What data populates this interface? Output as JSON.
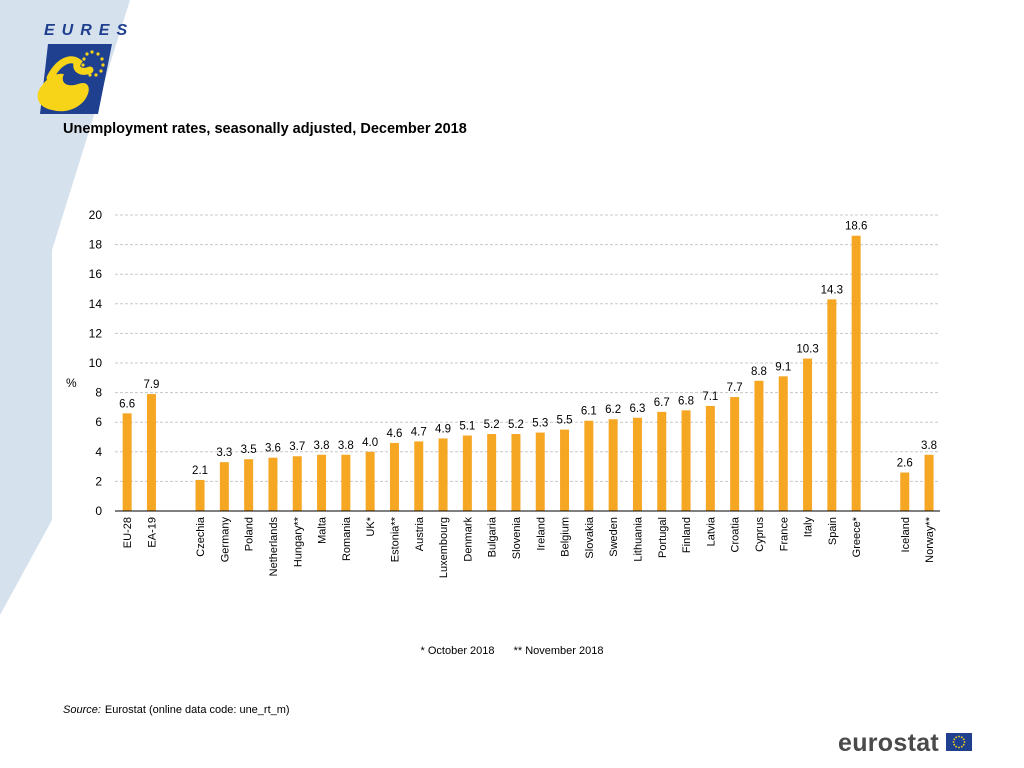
{
  "brand": {
    "logo_text": "EURES",
    "publisher": "eurostat"
  },
  "colors": {
    "bar": "#F5A623",
    "side_panel": "#D6E1EE",
    "logo_blue": "#1F3F8F",
    "logo_yellow": "#F7D417",
    "grid": "#C8C8C8"
  },
  "chart_data": {
    "type": "bar",
    "title": "Unemployment rates, seasonally adjusted, December 2018",
    "ylabel": "%",
    "xlabel": "",
    "ylim": [
      0,
      20
    ],
    "yticks": [
      0,
      2,
      4,
      6,
      8,
      10,
      12,
      14,
      16,
      18,
      20
    ],
    "grid": "horizontal dashed",
    "groups": [
      {
        "categories": [
          "EU-28",
          "EA-19"
        ],
        "values": [
          6.6,
          7.9
        ]
      },
      {
        "categories": [
          "Czechia",
          "Germany",
          "Poland",
          "Netherlands",
          "Hungary**",
          "Malta",
          "Romania",
          "UK*",
          "Estonia**",
          "Austria",
          "Luxembourg",
          "Denmark",
          "Bulgaria",
          "Slovenia",
          "Ireland",
          "Belgium",
          "Slovakia",
          "Sweden",
          "Lithuania",
          "Portugal",
          "Finland",
          "Latvia",
          "Croatia",
          "Cyprus",
          "France",
          "Italy",
          "Spain",
          "Greece*"
        ],
        "values": [
          2.1,
          3.3,
          3.5,
          3.6,
          3.7,
          3.8,
          3.8,
          4.0,
          4.6,
          4.7,
          4.9,
          5.1,
          5.2,
          5.2,
          5.3,
          5.5,
          6.1,
          6.2,
          6.3,
          6.7,
          6.8,
          7.1,
          7.7,
          8.8,
          9.1,
          10.3,
          14.3,
          18.6
        ]
      },
      {
        "categories": [
          "Iceland",
          "Norway**"
        ],
        "values": [
          2.6,
          3.8
        ]
      }
    ]
  },
  "footnotes": [
    "* October 2018",
    "** November 2018"
  ],
  "source": {
    "label": "Source:",
    "text": "Eurostat (online data code: une_rt_m)"
  }
}
